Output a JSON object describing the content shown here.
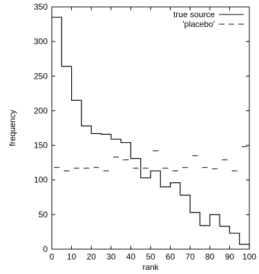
{
  "chart_data": {
    "type": "line",
    "title": "",
    "xlabel": "rank",
    "ylabel": "frequency",
    "xlim": [
      0,
      100
    ],
    "ylim": [
      0,
      350
    ],
    "xticks": [
      "0",
      "10",
      "20",
      "30",
      "40",
      "50",
      "60",
      "70",
      "80",
      "90",
      "100"
    ],
    "yticks": [
      "0",
      "50",
      "100",
      "150",
      "200",
      "250",
      "300",
      "350"
    ],
    "grid": false,
    "legend_position": "top-right",
    "series": [
      {
        "name": "true source",
        "style": "solid step",
        "color": "#000000",
        "bin_width": 5,
        "x": [
          0,
          5,
          10,
          15,
          20,
          25,
          30,
          35,
          40,
          45,
          50,
          55,
          60,
          65,
          70,
          75,
          80,
          85,
          90,
          95
        ],
        "values": [
          335,
          264,
          215,
          178,
          167,
          166,
          159,
          154,
          131,
          103,
          113,
          90,
          96,
          78,
          53,
          34,
          50,
          33,
          23,
          7
        ]
      },
      {
        "name": "'placebo'",
        "style": "dashed step",
        "color": "#000000",
        "bin_width": 5,
        "x": [
          0,
          5,
          10,
          15,
          20,
          25,
          30,
          35,
          40,
          45,
          50,
          55,
          60,
          65,
          70,
          75,
          80,
          85,
          90,
          95
        ],
        "values": [
          118,
          113,
          117,
          117,
          118,
          113,
          133,
          129,
          117,
          117,
          142,
          117,
          113,
          118,
          135,
          118,
          116,
          129,
          113,
          148
        ]
      }
    ]
  }
}
